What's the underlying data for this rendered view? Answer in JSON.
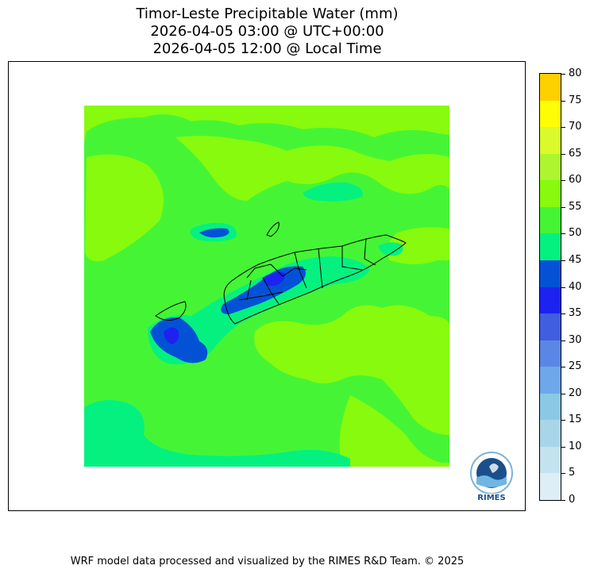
{
  "title": {
    "line1": "Timor-Leste Precipitable Water (mm)",
    "line2": "2026-04-05 03:00 @ UTC+00:00",
    "line3": "2026-04-05 12:00 @ Local Time"
  },
  "colorbar": {
    "ticks": [
      "0",
      "5",
      "10",
      "15",
      "20",
      "25",
      "30",
      "35",
      "40",
      "45",
      "50",
      "55",
      "60",
      "65",
      "70",
      "75",
      "80"
    ],
    "colors": [
      "#ddeef6",
      "#c4e3ee",
      "#a8d6e8",
      "#8bc8e6",
      "#6ea7ea",
      "#5a87e5",
      "#3f5fe0",
      "#1d22f0",
      "#0352d6",
      "#04f180",
      "#45f535",
      "#87fa0d",
      "#aef530",
      "#dafa2b",
      "#fffd06",
      "#ffd000"
    ]
  },
  "logo": {
    "label": "RIMES"
  },
  "footer": {
    "text": "WRF model data processed and visualized by the RIMES R&D Team. © 2025"
  }
}
